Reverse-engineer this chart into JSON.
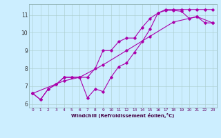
{
  "xlabel": "Windchill (Refroidissement éolien,°C)",
  "bg_color": "#cceeff",
  "grid_color": "#aacccc",
  "line_color": "#aa00aa",
  "xlim": [
    -0.5,
    23.5
  ],
  "ylim": [
    5.8,
    11.6
  ],
  "yticks": [
    6,
    7,
    8,
    9,
    10,
    11
  ],
  "xticks": [
    0,
    1,
    2,
    3,
    4,
    5,
    6,
    7,
    8,
    9,
    10,
    11,
    12,
    13,
    14,
    15,
    16,
    17,
    18,
    19,
    20,
    21,
    22,
    23
  ],
  "line1_x": [
    0,
    1,
    2,
    3,
    4,
    5,
    6,
    7,
    8,
    9,
    10,
    11,
    12,
    13,
    14,
    15,
    16,
    17,
    18,
    19,
    20,
    21,
    22,
    23
  ],
  "line1_y": [
    6.6,
    6.25,
    6.85,
    7.1,
    7.5,
    7.5,
    7.5,
    6.35,
    6.85,
    6.7,
    7.5,
    8.1,
    8.3,
    8.9,
    9.5,
    10.2,
    11.1,
    11.25,
    11.25,
    11.2,
    10.8,
    10.9,
    10.55,
    10.55
  ],
  "line2_x": [
    0,
    1,
    2,
    3,
    4,
    5,
    6,
    7,
    8,
    9,
    10,
    11,
    12,
    13,
    14,
    15,
    16,
    17,
    18,
    19,
    20,
    21,
    22,
    23
  ],
  "line2_y": [
    6.6,
    6.25,
    6.85,
    7.1,
    7.5,
    7.5,
    7.5,
    7.5,
    8.0,
    9.0,
    9.0,
    9.5,
    9.7,
    9.7,
    10.3,
    10.8,
    11.1,
    11.3,
    11.3,
    11.3,
    11.3,
    11.3,
    11.3,
    11.3
  ],
  "line3_x": [
    0,
    4,
    6,
    9,
    12,
    15,
    18,
    21,
    23
  ],
  "line3_y": [
    6.6,
    7.3,
    7.5,
    8.2,
    9.0,
    9.8,
    10.6,
    10.9,
    10.55
  ]
}
